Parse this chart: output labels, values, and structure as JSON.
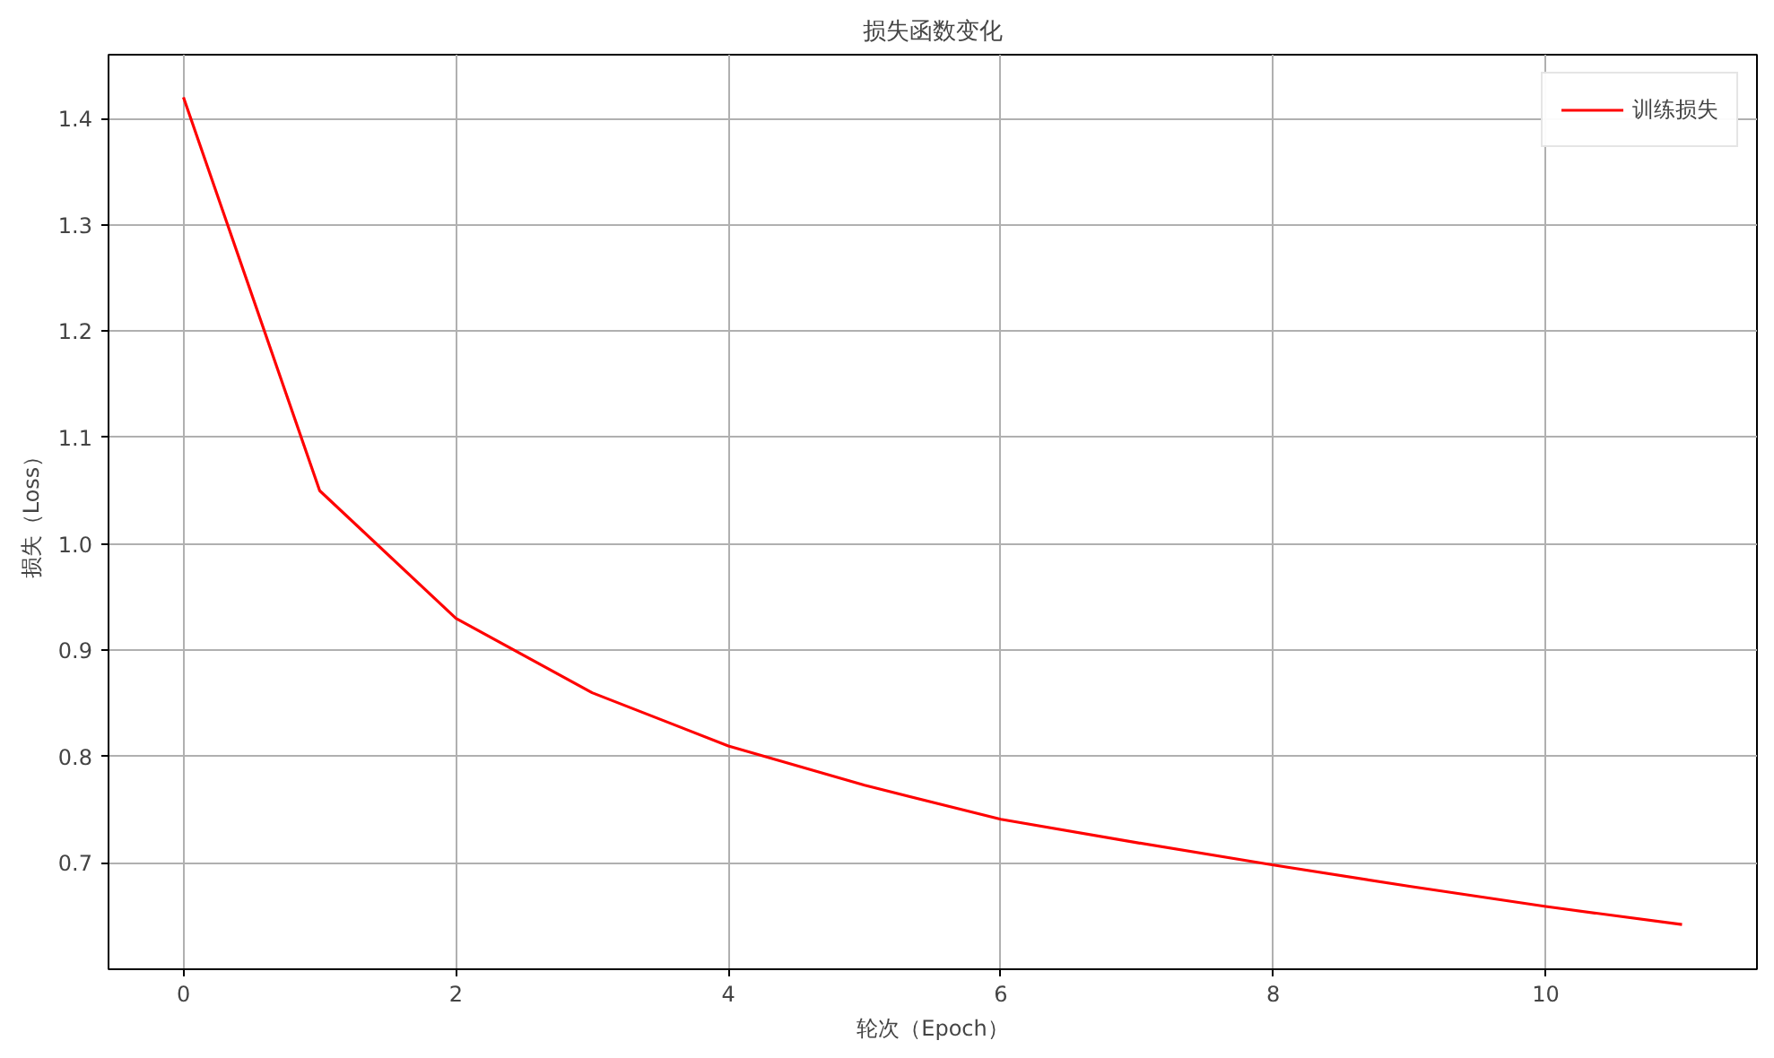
{
  "chart_data": {
    "type": "line",
    "title": "损失函数变化",
    "xlabel": "轮次（Epoch）",
    "ylabel": "损失（Loss）",
    "x": [
      0,
      1,
      2,
      3,
      4,
      5,
      6,
      7,
      8,
      9,
      10,
      11
    ],
    "series": [
      {
        "name": "训练损失",
        "color": "#ff0000",
        "values": [
          1.42,
          1.05,
          0.93,
          0.86,
          0.81,
          0.773,
          0.741,
          0.719,
          0.698,
          0.678,
          0.659,
          0.642
        ]
      }
    ],
    "xlim": [
      -0.55,
      11.55
    ],
    "ylim": [
      0.6,
      1.46
    ],
    "xticks": [
      0,
      2,
      4,
      6,
      8,
      10
    ],
    "yticks": [
      0.7,
      0.8,
      0.9,
      {
        "value": 1.0,
        "label": "1.0"
      },
      1.1,
      1.2,
      1.3,
      1.4
    ],
    "grid": true,
    "legend": "top right",
    "line_style": "solid",
    "marker": "none"
  }
}
